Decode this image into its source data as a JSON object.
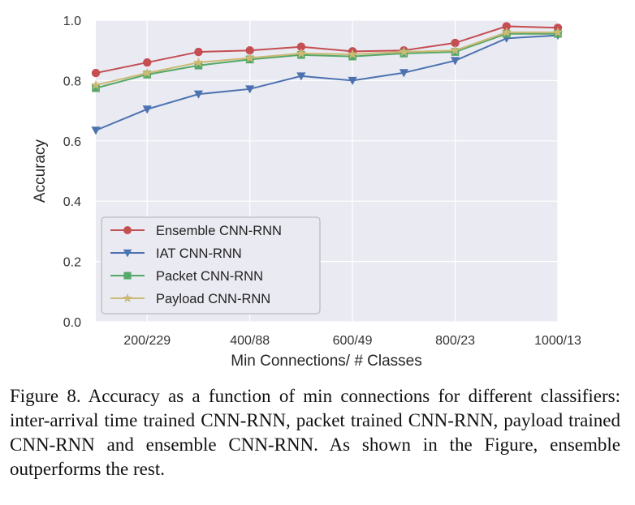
{
  "chart_data": {
    "type": "line",
    "title": "",
    "xlabel": "Min Connections/ # Classes",
    "ylabel": "Accuracy",
    "x": [
      0,
      1,
      2,
      3,
      4,
      5,
      6,
      7,
      8,
      9
    ],
    "xticks": [
      {
        "pos": 1,
        "label": "200/229"
      },
      {
        "pos": 3,
        "label": "400/88"
      },
      {
        "pos": 5,
        "label": "600/49"
      },
      {
        "pos": 7,
        "label": "800/23"
      },
      {
        "pos": 9,
        "label": "1000/13"
      }
    ],
    "yticks": [
      "0.0",
      "0.2",
      "0.4",
      "0.6",
      "0.8",
      "1.0"
    ],
    "xlim": [
      0,
      9
    ],
    "ylim": [
      0,
      1.0
    ],
    "grid": true,
    "legend_location": "lower-left",
    "series": [
      {
        "name": "Ensemble CNN-RNN",
        "color": "#c44e52",
        "marker": "circle",
        "values": [
          0.825,
          0.86,
          0.895,
          0.9,
          0.912,
          0.897,
          0.9,
          0.925,
          0.98,
          0.975
        ]
      },
      {
        "name": "IAT CNN-RNN",
        "color": "#4c72b0",
        "marker": "triangle-down",
        "values": [
          0.635,
          0.705,
          0.755,
          0.772,
          0.815,
          0.8,
          0.826,
          0.866,
          0.94,
          0.95
        ]
      },
      {
        "name": "Packet CNN-RNN",
        "color": "#55a868",
        "marker": "square",
        "values": [
          0.775,
          0.82,
          0.85,
          0.87,
          0.885,
          0.88,
          0.89,
          0.895,
          0.955,
          0.955
        ]
      },
      {
        "name": "Payload CNN-RNN",
        "color": "#ccb974",
        "marker": "star",
        "values": [
          0.785,
          0.825,
          0.86,
          0.875,
          0.89,
          0.887,
          0.895,
          0.9,
          0.96,
          0.96
        ]
      }
    ]
  },
  "caption": "Figure 8. Accuracy as a function of min connections for different classifiers: inter-arrival time trained CNN-RNN, packet trained CNN-RNN, payload trained CNN-RNN and ensemble CNN-RNN. As shown in the Figure, ensemble outperforms the rest."
}
